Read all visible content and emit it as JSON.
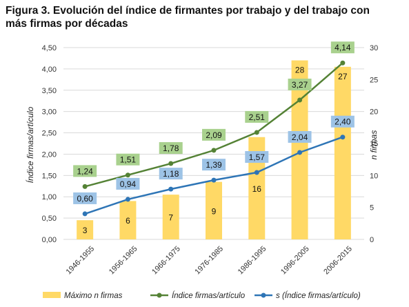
{
  "title": "Figura 3. Evolución del índice de firmantes por trabajo y del trabajo con más firmas por décadas",
  "colors": {
    "bar": "#FFD966",
    "index_line": "#548235",
    "index_label_bg": "#A9D18E",
    "sd_line": "#2E75B6",
    "sd_label_bg": "#9DC3E6",
    "grid": "#D9D9D9"
  },
  "chart_data": {
    "type": "bar+line",
    "categories": [
      "1946-1955",
      "1956-1965",
      "1966-1975",
      "1976-1985",
      "1986-1995",
      "1996-2005",
      "2006-2015"
    ],
    "left_axis": {
      "label": "Índice firmas/artículo",
      "ylim": [
        0,
        4.5
      ],
      "ticks": [
        "0,00",
        "0,50",
        "1,00",
        "1,50",
        "2,00",
        "2,50",
        "3,00",
        "3,50",
        "4,00",
        "4,50"
      ]
    },
    "right_axis": {
      "label": "n firmas",
      "ylim": [
        0,
        30
      ],
      "ticks": [
        "0",
        "5",
        "10",
        "15",
        "20",
        "25",
        "30"
      ]
    },
    "series": [
      {
        "name": "Máximo n firmas",
        "kind": "bar",
        "axis": "right",
        "values": [
          3,
          6,
          7,
          9,
          16,
          28,
          27
        ],
        "labels": [
          "3",
          "6",
          "7",
          "9",
          "16",
          "28",
          "27"
        ]
      },
      {
        "name": "Índice firmas/artículo",
        "kind": "line",
        "axis": "left",
        "values": [
          1.24,
          1.51,
          1.78,
          2.09,
          2.51,
          3.27,
          4.14
        ],
        "labels": [
          "1,24",
          "1,51",
          "1,78",
          "2,09",
          "2,51",
          "3,27",
          "4,14"
        ]
      },
      {
        "name": "s (Índice firmas/artículo)",
        "kind": "line",
        "axis": "left",
        "values": [
          0.6,
          0.94,
          1.18,
          1.39,
          1.57,
          2.04,
          2.4
        ],
        "labels": [
          "0,60",
          "0,94",
          "1,18",
          "1,39",
          "1,57",
          "2,04",
          "2,40"
        ]
      }
    ],
    "grid": true,
    "legend_position": "bottom"
  }
}
